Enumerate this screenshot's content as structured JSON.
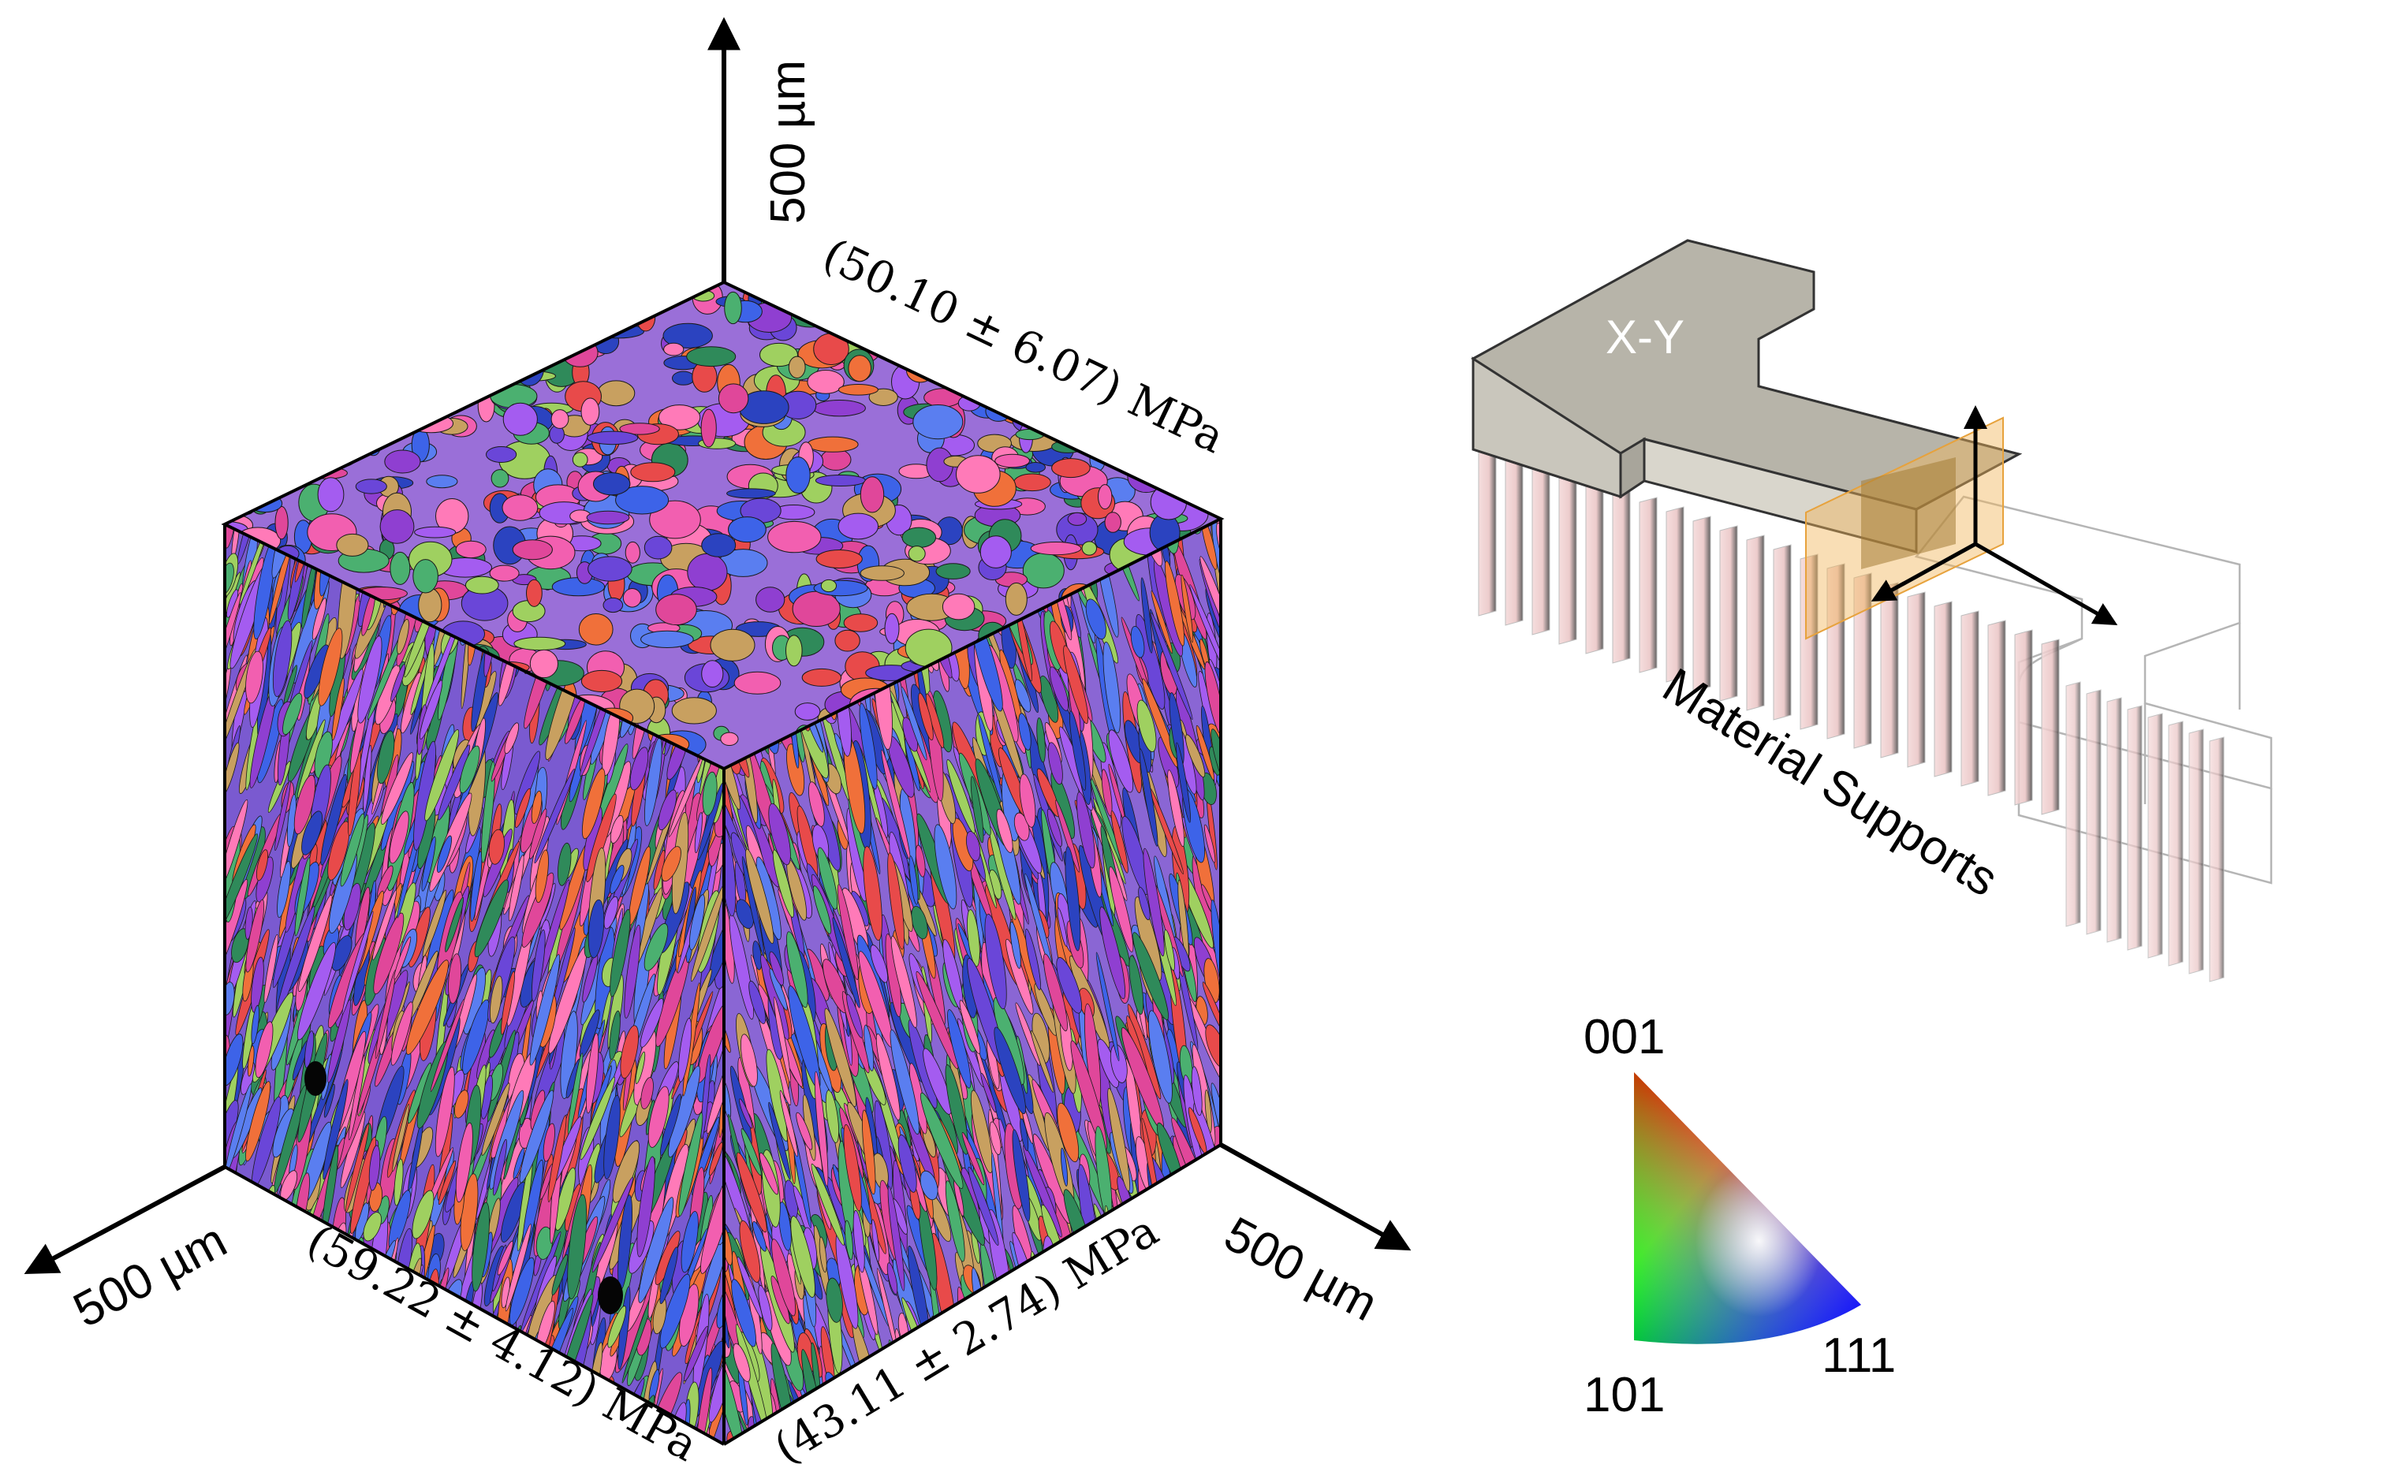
{
  "cube": {
    "axis_up_label": "500 µm",
    "axis_left_label": "500 µm",
    "axis_right_label": "500 µm",
    "top_face_stress": "(50.10 ± 6.07) MPa",
    "left_face_stress": "(59.22 ± 4.12) MPa",
    "right_face_stress": "(43.11 ± 2.74) MPa"
  },
  "specimen": {
    "plane_label": "X-Y",
    "supports_label": "Material Supports"
  },
  "ipf_legend": {
    "corner_top": "001",
    "corner_bottom_left": "101",
    "corner_bottom_right": "111"
  },
  "colors": {
    "grain_palette": [
      "#e0479a",
      "#a45cf0",
      "#3d63e8",
      "#f0703a",
      "#2f8a5a",
      "#8f3fd1",
      "#f25fb0",
      "#5a7ef0",
      "#e84a4a",
      "#4bb070",
      "#c8a060",
      "#6a46d8",
      "#ff7ab8",
      "#2b43c0",
      "#9fd060"
    ],
    "face_shade_top": "#ffffff",
    "specimen_block": "#b9b6ab",
    "plane_highlight": "#f2b55a"
  }
}
